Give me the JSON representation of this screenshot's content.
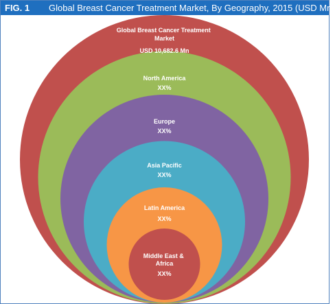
{
  "figure": {
    "number": "FIG. 1",
    "title": "Global Breast Cancer Treatment Market, By Geography, 2015 (USD Mn)"
  },
  "chart_data": {
    "type": "nested-circles",
    "title": "Global Breast Cancer Treatment Market, By Geography, 2015 (USD Mn)",
    "rings": [
      {
        "name": "Global Breast Cancer Treatment Market",
        "value": "USD 10,682.6 Mn",
        "color": "#c0504d"
      },
      {
        "name": "North America",
        "value": "XX%",
        "color": "#9bbb59"
      },
      {
        "name": "Europe",
        "value": "XX%",
        "color": "#8064a2"
      },
      {
        "name": "Asia Pacific",
        "value": "XX%",
        "color": "#4bacc6"
      },
      {
        "name": "Latin America",
        "value": "XX%",
        "color": "#f79646"
      },
      {
        "name": "Middle East & Africa",
        "value": "XX%",
        "color": "#c0504d"
      }
    ]
  }
}
